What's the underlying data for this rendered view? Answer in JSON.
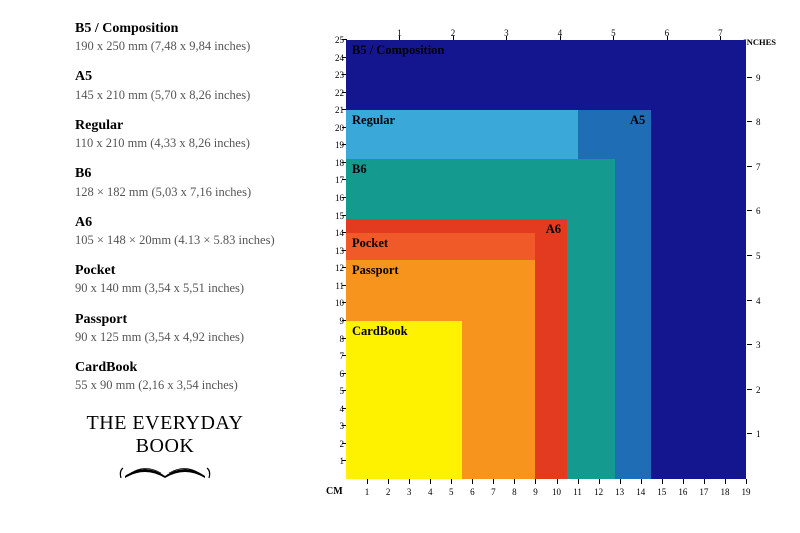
{
  "logo_text": "THE EVERYDAY BOOK",
  "units": {
    "cm": "CM",
    "inches": "INCHES"
  },
  "axes": {
    "cm_x_max": 19,
    "cm_y_max": 25,
    "in_x_max": 7,
    "in_y_max": 9,
    "cm_per_inch": 2.54,
    "tick_color": "#000000",
    "label_fontsize": 9
  },
  "sizes": [
    {
      "key": "b5",
      "title": "B5 / Composition",
      "dims_text": "190 x 250 mm (7,48 x 9,84 inches)",
      "width_cm": 19.0,
      "height_cm": 25.0,
      "color": "#14168f",
      "label": "B5 / Composition",
      "label_color": "#000000",
      "right_label": null
    },
    {
      "key": "a5",
      "title": "A5",
      "dims_text": "145 x 210 mm (5,70 x 8,26 inches)",
      "width_cm": 14.5,
      "height_cm": 21.0,
      "color": "#1f6db5",
      "label": null,
      "label_color": "#000000",
      "right_label": "A5",
      "right_label_color": "#000000"
    },
    {
      "key": "regular",
      "title": "Regular",
      "dims_text": "110 x 210 mm (4,33 x 8,26 inches)",
      "width_cm": 11.0,
      "height_cm": 21.0,
      "color": "#3aa8d8",
      "label": "Regular",
      "label_color": "#000000",
      "right_label": null
    },
    {
      "key": "b6",
      "title": "B6",
      "dims_text": "128 × 182 mm (5,03 x 7,16 inches)",
      "width_cm": 12.8,
      "height_cm": 18.2,
      "color": "#149a8e",
      "label": "B6",
      "label_color": "#000000",
      "right_label": null
    },
    {
      "key": "a6",
      "title": "A6",
      "dims_text": "105 × 148 × 20mm (4.13 × 5.83 inches)",
      "width_cm": 10.5,
      "height_cm": 14.8,
      "color": "#e23b1f",
      "label": null,
      "label_color": "#000000",
      "right_label": "A6",
      "right_label_color": "#000000"
    },
    {
      "key": "pocket",
      "title": "Pocket",
      "dims_text": "90 x 140 mm (3,54 x 5,51 inches)",
      "width_cm": 9.0,
      "height_cm": 14.0,
      "color": "#f05a28",
      "label": "Pocket",
      "label_color": "#000000",
      "right_label": null
    },
    {
      "key": "passport",
      "title": "Passport",
      "dims_text": "90 x 125 mm (3,54 x 4,92 inches)",
      "width_cm": 9.0,
      "height_cm": 12.5,
      "color": "#f7941e",
      "label": "Passport",
      "label_color": "#000000",
      "right_label": null
    },
    {
      "key": "cardbook",
      "title": "CardBook",
      "dims_text": "55 x 90 mm (2,16 x 3,54 inches)",
      "width_cm": 5.5,
      "height_cm": 9.0,
      "color": "#fff200",
      "label": "CardBook",
      "label_color": "#000000",
      "right_label": null
    }
  ],
  "background_color": "#ffffff"
}
